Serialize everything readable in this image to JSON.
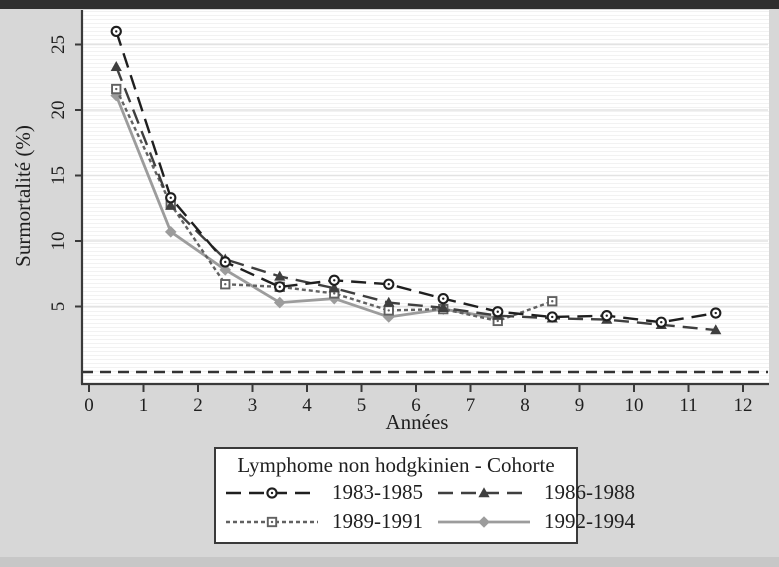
{
  "colors": {
    "page_background": "#d7d7d7",
    "plot_background": "#ffffff",
    "gridline": "#e3e3e3",
    "minor_stripe": "#f2f2f2",
    "axis": "#3a3a3a",
    "reference_line": "#333333"
  },
  "chart_data": {
    "type": "line",
    "title": "",
    "xlabel": "Années",
    "ylabel": "Surmortalité (%)",
    "x_ticks": [
      0,
      1,
      2,
      3,
      4,
      5,
      6,
      7,
      8,
      9,
      10,
      11,
      12
    ],
    "y_ticks": [
      5,
      10,
      15,
      20,
      25
    ],
    "xlim": [
      -0.15,
      12.5
    ],
    "ylim": [
      -0.9,
      27.5
    ],
    "grid": "horizontal-only",
    "reference_line_y": 0,
    "x": [
      0.5,
      1.5,
      2.5,
      3.5,
      4.5,
      5.5,
      6.5,
      7.5,
      8.5,
      9.5,
      10.5,
      11.5
    ],
    "series": [
      {
        "name": "1983-1985",
        "marker": "circle-open",
        "dash": "longdash",
        "color": "#1f1f1f",
        "values": [
          26.0,
          13.3,
          8.4,
          6.5,
          7.0,
          6.7,
          5.6,
          4.6,
          4.2,
          4.3,
          3.8,
          4.5
        ]
      },
      {
        "name": "1986-1988",
        "marker": "triangle-filled",
        "dash": "longdash",
        "color": "#3f3f3f",
        "values": [
          23.3,
          12.7,
          8.6,
          7.3,
          6.4,
          5.3,
          4.9,
          4.3,
          4.1,
          4.0,
          3.6,
          3.2
        ]
      },
      {
        "name": "1989-1991",
        "marker": "square-open",
        "dash": "shortdash",
        "color": "#616161",
        "values": [
          21.6,
          12.8,
          6.7,
          6.5,
          6.0,
          4.7,
          4.8,
          3.9,
          5.4,
          null,
          null,
          null
        ]
      },
      {
        "name": "1992-1994",
        "marker": "diamond-filled",
        "dash": "solid",
        "color": "#9c9c9c",
        "values": [
          21.1,
          10.7,
          7.8,
          5.3,
          5.6,
          4.2,
          4.8,
          4.1,
          null,
          null,
          null,
          null
        ]
      }
    ],
    "legend": {
      "title": "Lymphome non hodgkinien - Cohorte",
      "position": "bottom",
      "entries": [
        "1983-1985",
        "1986-1988",
        "1989-1991",
        "1992-1994"
      ]
    }
  }
}
